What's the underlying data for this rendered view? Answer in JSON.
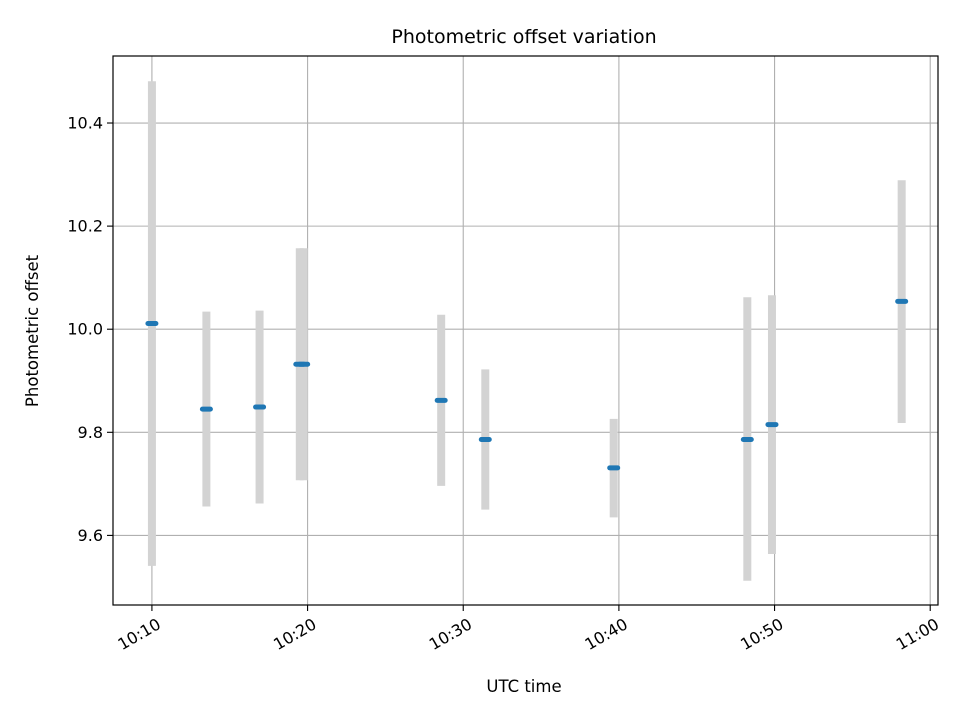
{
  "chart_data": {
    "type": "scatter",
    "title": "Photometric offset variation",
    "xlabel": "UTC time",
    "ylabel": "Photometric offset",
    "x_is_time": true,
    "xlim": [
      "10:07:30",
      "11:00:30"
    ],
    "ylim": [
      9.465,
      10.53
    ],
    "grid": true,
    "xticks": [
      "10:10",
      "10:20",
      "10:30",
      "10:40",
      "10:50",
      "11:00"
    ],
    "yticks": [
      9.6,
      9.8,
      10.0,
      10.2,
      10.4
    ],
    "ytick_labels": [
      "9.6",
      "9.8",
      "10.0",
      "10.2",
      "10.4"
    ],
    "marker_color": "#1f77b4",
    "errorbar_color": "#d3d3d3",
    "points": [
      {
        "time": "10:10:00",
        "y": 10.011,
        "yerr_low": 9.541,
        "yerr_high": 10.481
      },
      {
        "time": "10:13:30",
        "y": 9.845,
        "yerr_low": 9.656,
        "yerr_high": 10.034
      },
      {
        "time": "10:16:55",
        "y": 9.849,
        "yerr_low": 9.662,
        "yerr_high": 10.036
      },
      {
        "time": "10:19:30",
        "y": 9.932,
        "yerr_low": 9.707,
        "yerr_high": 10.157
      },
      {
        "time": "10:19:45",
        "y": 9.932,
        "yerr_low": 9.707,
        "yerr_high": 10.157
      },
      {
        "time": "10:28:35",
        "y": 9.862,
        "yerr_low": 9.696,
        "yerr_high": 10.028
      },
      {
        "time": "10:31:25",
        "y": 9.786,
        "yerr_low": 9.65,
        "yerr_high": 9.922
      },
      {
        "time": "10:39:40",
        "y": 9.731,
        "yerr_low": 9.635,
        "yerr_high": 9.826
      },
      {
        "time": "10:48:15",
        "y": 9.786,
        "yerr_low": 9.512,
        "yerr_high": 10.062
      },
      {
        "time": "10:49:50",
        "y": 9.815,
        "yerr_low": 9.564,
        "yerr_high": 10.066
      },
      {
        "time": "10:58:10",
        "y": 10.054,
        "yerr_low": 9.818,
        "yerr_high": 10.289
      }
    ]
  }
}
